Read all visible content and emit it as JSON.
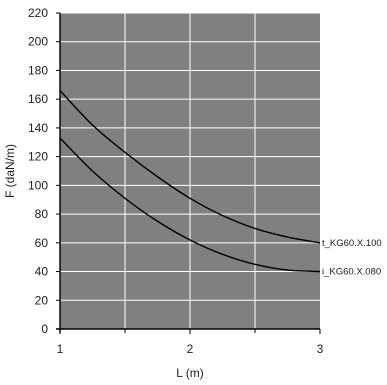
{
  "chart_data": {
    "type": "line",
    "title": "",
    "xlabel": "L (m)",
    "ylabel": "F (daN/m)",
    "xlim": [
      1,
      3
    ],
    "ylim": [
      0,
      220
    ],
    "x_ticks": [
      1,
      2,
      3
    ],
    "y_ticks": [
      0,
      20,
      40,
      60,
      80,
      100,
      120,
      140,
      160,
      180,
      200,
      220
    ],
    "x_tick_labels": [
      "1",
      "2",
      "3"
    ],
    "y_tick_labels": [
      "0",
      "20",
      "40",
      "60",
      "80",
      "100",
      "120",
      "140",
      "160",
      "180",
      "200",
      "220"
    ],
    "grid": true,
    "plot_background": "#808080",
    "grid_color": "#ffffff",
    "line_color": "#000000",
    "series": [
      {
        "name": "t_KG60.X.100",
        "x": [
          1.0,
          1.25,
          1.5,
          1.75,
          2.0,
          2.25,
          2.5,
          2.75,
          3.0
        ],
        "y": [
          166,
          142,
          123,
          106,
          91,
          79,
          70,
          64,
          60
        ]
      },
      {
        "name": "i_KG60.X.080",
        "x": [
          1.0,
          1.25,
          1.5,
          1.75,
          2.0,
          2.25,
          2.5,
          2.75,
          3.0
        ],
        "y": [
          133,
          110,
          91,
          75,
          62,
          52,
          45,
          41,
          40
        ]
      }
    ]
  }
}
